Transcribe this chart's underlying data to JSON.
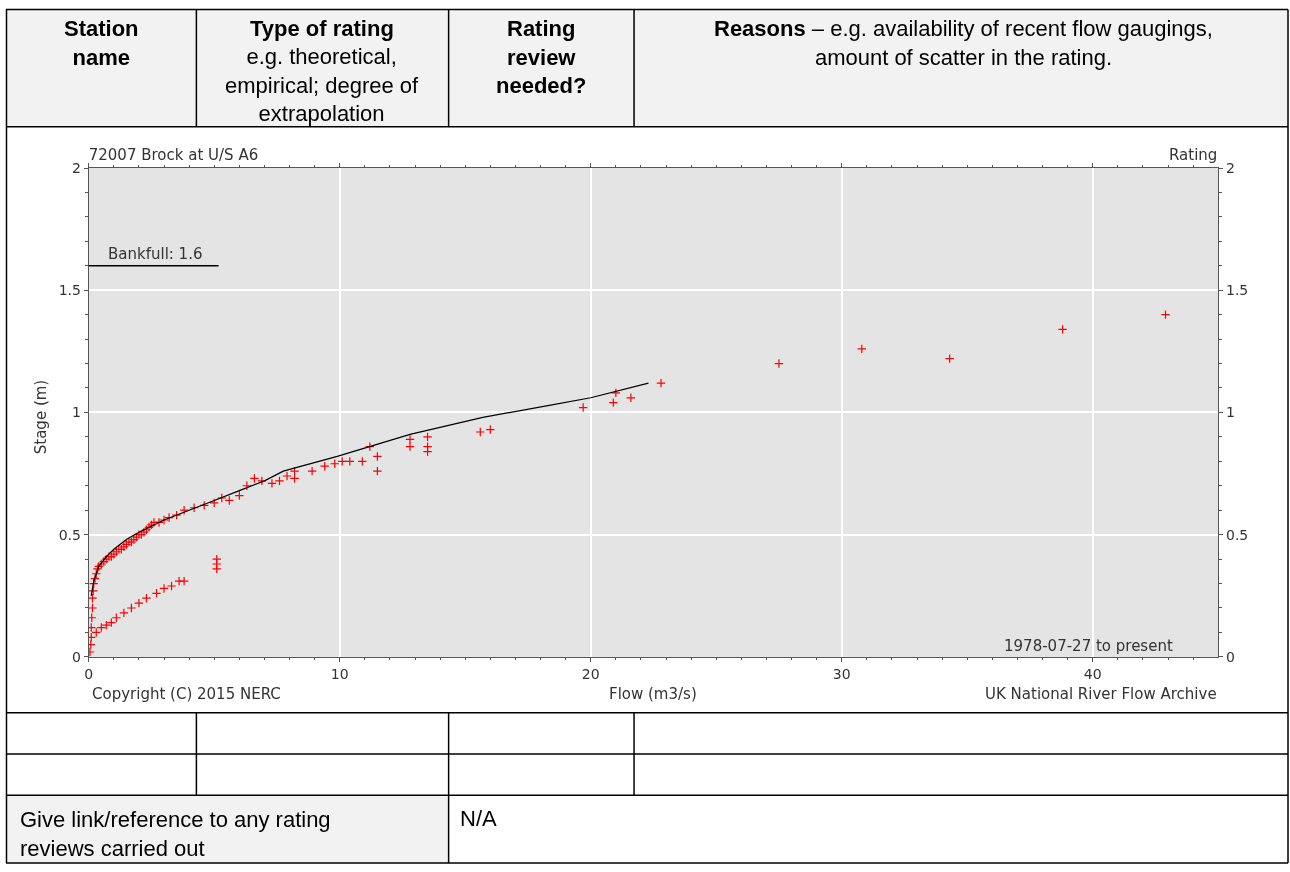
{
  "chart_data": {
    "type": "scatter",
    "title": "72007 Brock at U/S A6",
    "xlabel": "Flow (m3/s)",
    "ylabel": "Stage (m)",
    "annotations": [
      "Rating",
      "Copyright (C) 2015 NERC",
      "UK National River Flow Archive",
      "1978-07-27 to present",
      "Station name",
      "Type of rating",
      "e.g. theoretical, empirical; degree of extrapolation",
      "Rating review needed?",
      "Reasons",
      "– e.g. availability of recent flow gaugings, amount of scatter in the rating.",
      "Give link/reference to any rating reviews carried out",
      "N/A"
    ],
    "series": [
      {
        "color": "#ff0000",
        "marker": "cross",
        "x": [
          0.05,
          0.08,
          0.1,
          0.1,
          0.12,
          0.15,
          0.15,
          0.18,
          0.2,
          0.25,
          0.3,
          0.35,
          0.4,
          0.5,
          0.6,
          0.7,
          0.8,
          0.9,
          1.0,
          1.1,
          1.2,
          1.3,
          1.4,
          1.5,
          1.6,
          1.7,
          1.8,
          1.9,
          2.0,
          2.1,
          2.2,
          2.3,
          2.4,
          2.5,
          2.6,
          2.8,
          3.0,
          3.2,
          3.5,
          3.8,
          4.2,
          4.6,
          5.0,
          5.3,
          5.6,
          6.0,
          6.3,
          6.6,
          6.9,
          7.3,
          7.6,
          7.9,
          8.2,
          8.2,
          8.9,
          9.4,
          9.8,
          10.1,
          10.4,
          10.9,
          11.2,
          11.5,
          11.5,
          12.8,
          12.8,
          13.5,
          13.5,
          13.5,
          15.6,
          16.0,
          19.7,
          20.9,
          21.0,
          21.6,
          22.8,
          27.5,
          30.8,
          34.3,
          38.8,
          42.9,
          0.3,
          0.5,
          0.7,
          0.9,
          1.1,
          1.4,
          1.7,
          2.0,
          2.3,
          2.7,
          3.0,
          3.3,
          3.6,
          3.8,
          5.1,
          5.1,
          5.1
        ],
        "values": [
          0.02,
          0.05,
          0.08,
          0.12,
          0.16,
          0.2,
          0.24,
          0.27,
          0.3,
          0.32,
          0.34,
          0.36,
          0.37,
          0.38,
          0.39,
          0.4,
          0.41,
          0.41,
          0.42,
          0.43,
          0.44,
          0.44,
          0.45,
          0.46,
          0.47,
          0.47,
          0.48,
          0.49,
          0.5,
          0.5,
          0.51,
          0.52,
          0.53,
          0.54,
          0.55,
          0.55,
          0.56,
          0.57,
          0.58,
          0.6,
          0.61,
          0.62,
          0.63,
          0.65,
          0.64,
          0.66,
          0.7,
          0.73,
          0.72,
          0.71,
          0.72,
          0.74,
          0.76,
          0.73,
          0.76,
          0.78,
          0.79,
          0.8,
          0.8,
          0.8,
          0.86,
          0.82,
          0.76,
          0.89,
          0.86,
          0.9,
          0.86,
          0.84,
          0.92,
          0.93,
          1.02,
          1.04,
          1.08,
          1.06,
          1.12,
          1.2,
          1.26,
          1.22,
          1.34,
          1.4,
          0.1,
          0.12,
          0.13,
          0.14,
          0.16,
          0.18,
          0.2,
          0.22,
          0.24,
          0.26,
          0.28,
          0.29,
          0.31,
          0.31,
          0.36,
          0.38,
          0.4
        ]
      },
      {
        "type": "line",
        "color": "#000000",
        "x": [
          0.1,
          0.2,
          0.4,
          0.7,
          1,
          1.5,
          2,
          3,
          4,
          5,
          6,
          7,
          7.75,
          9.9,
          12.8,
          15.7,
          18.4,
          20,
          22.3
        ],
        "values": [
          0.25,
          0.31,
          0.37,
          0.41,
          0.44,
          0.48,
          0.51,
          0.56,
          0.6,
          0.64,
          0.68,
          0.72,
          0.76,
          0.82,
          0.91,
          0.98,
          1.03,
          1.06,
          1.12
        ]
      }
    ],
    "ref_lines": [
      {
        "axis": "y",
        "value": 1.6,
        "label": "Bankfull: 1.6",
        "color": "#000000"
      }
    ],
    "xlim": [
      0,
      45
    ],
    "xticks": [
      0,
      {
        "value": 1,
        "label": null
      },
      {
        "value": 2,
        "label": null
      },
      {
        "value": 3,
        "label": null
      },
      {
        "value": 4,
        "label": null
      },
      {
        "value": 5,
        "label": null
      },
      {
        "value": 6,
        "label": null
      },
      {
        "value": 7,
        "label": null
      },
      {
        "value": 8,
        "label": null
      },
      {
        "value": 9,
        "label": null
      },
      10,
      {
        "value": 11,
        "label": null
      },
      {
        "value": 12,
        "label": null
      },
      {
        "value": 13,
        "label": null
      },
      {
        "value": 14,
        "label": null
      },
      {
        "value": 15,
        "label": null
      },
      {
        "value": 16,
        "label": null
      },
      {
        "value": 17,
        "label": null
      },
      {
        "value": 18,
        "label": null
      },
      {
        "value": 19,
        "label": null
      },
      20,
      {
        "value": 21,
        "label": null
      },
      {
        "value": 22,
        "label": null
      },
      {
        "value": 23,
        "label": null
      },
      {
        "value": 24,
        "label": null
      },
      {
        "value": 25,
        "label": null
      },
      {
        "value": 26,
        "label": null
      },
      {
        "value": 27,
        "label": null
      },
      {
        "value": 28,
        "label": null
      },
      {
        "value": 29,
        "label": null
      },
      30,
      {
        "value": 31,
        "label": null
      },
      {
        "value": 32,
        "label": null
      },
      {
        "value": 33,
        "label": null
      },
      {
        "value": 34,
        "label": null
      },
      {
        "value": 35,
        "label": null
      },
      {
        "value": 36,
        "label": null
      },
      {
        "value": 37,
        "label": null
      },
      {
        "value": 38,
        "label": null
      },
      {
        "value": 39,
        "label": null
      },
      40,
      {
        "value": 41,
        "label": null
      },
      {
        "value": 42,
        "label": null
      },
      {
        "value": 43,
        "label": null
      },
      {
        "value": 44,
        "label": null
      }
    ],
    "ylim": [
      0,
      2
    ],
    "yticks": [
      0,
      {
        "value": 0.1,
        "label": null
      },
      {
        "value": 0.2,
        "label": null
      },
      {
        "value": 0.3,
        "label": null
      },
      {
        "value": 0.4,
        "label": null
      },
      0.5,
      {
        "value": 0.6,
        "label": null
      },
      {
        "value": 0.7,
        "label": null
      },
      {
        "value": 0.8,
        "label": null
      },
      {
        "value": 0.9,
        "label": null
      },
      1,
      {
        "value": 1.1,
        "label": null
      },
      {
        "value": 1.2,
        "label": null
      },
      {
        "value": 1.3,
        "label": null
      },
      {
        "value": 1.4,
        "label": null
      },
      1.5,
      {
        "value": 1.6,
        "label": null
      },
      {
        "value": 1.7,
        "label": null
      },
      {
        "value": 1.8,
        "label": null
      },
      {
        "value": 1.9,
        "label": null
      },
      2
    ],
    "y2lim": [
      0,
      2
    ],
    "y2ticks": [
      0,
      {
        "value": 0.1,
        "label": null
      },
      {
        "value": 0.2,
        "label": null
      },
      {
        "value": 0.3,
        "label": null
      },
      {
        "value": 0.4,
        "label": null
      },
      0.5,
      {
        "value": 0.6,
        "label": null
      },
      {
        "value": 0.7,
        "label": null
      },
      {
        "value": 0.8,
        "label": null
      },
      {
        "value": 0.9,
        "label": null
      },
      1,
      {
        "value": 1.1,
        "label": null
      },
      {
        "value": 1.2,
        "label": null
      },
      {
        "value": 1.3,
        "label": null
      },
      {
        "value": 1.4,
        "label": null
      },
      1.5,
      {
        "value": 1.6,
        "label": null
      },
      {
        "value": 1.7,
        "label": null
      },
      {
        "value": 1.8,
        "label": null
      },
      {
        "value": 1.9,
        "label": null
      },
      2
    ],
    "grid": true
  }
}
